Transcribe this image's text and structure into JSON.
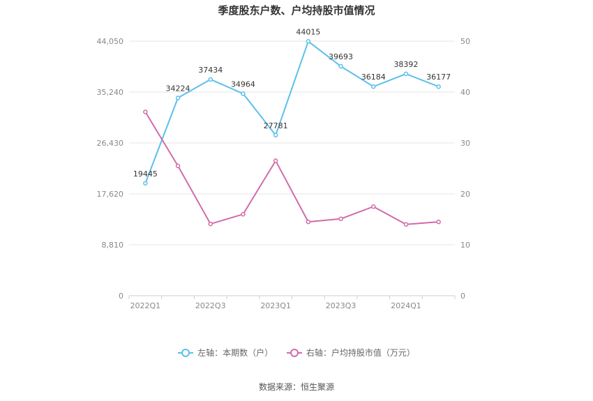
{
  "chart_data": {
    "type": "line",
    "title": "季度股东户数、户均持股市值情况",
    "categories": [
      "2022Q1",
      "2022Q2",
      "2022Q3",
      "2022Q4",
      "2023Q1",
      "2023Q2",
      "2023Q3",
      "2023Q4",
      "2024Q1",
      "2024Q2"
    ],
    "x_tick_labels": [
      "2022Q1",
      "",
      "2022Q3",
      "",
      "2023Q1",
      "",
      "2023Q3",
      "",
      "2024Q1",
      ""
    ],
    "left_axis": {
      "ticks": [
        "0",
        "8,810",
        "17,620",
        "26,430",
        "35,240",
        "44,050"
      ],
      "ylim": [
        0,
        44050
      ]
    },
    "right_axis": {
      "ticks": [
        "0",
        "10",
        "20",
        "30",
        "40",
        "50"
      ],
      "ylim": [
        0,
        50
      ]
    },
    "series": [
      {
        "name": "左轴：本期数（户）",
        "axis": "left",
        "color": "#5bc0eb",
        "values": [
          19445,
          34224,
          37434,
          34964,
          27781,
          44015,
          39693,
          36184,
          38392,
          36177
        ],
        "labels": [
          "19445",
          "34224",
          "37434",
          "34964",
          "27781",
          "44015",
          "39693",
          "36184",
          "38392",
          "36177"
        ]
      },
      {
        "name": "右轴：户均持股市值（万元）",
        "axis": "right",
        "color": "#d16baa",
        "values": [
          36.1,
          25.5,
          14.1,
          16.0,
          26.5,
          14.5,
          15.1,
          17.5,
          14.0,
          14.5
        ]
      }
    ],
    "grid": true,
    "legend_position": "bottom"
  },
  "source": "数据来源：恒生聚源"
}
